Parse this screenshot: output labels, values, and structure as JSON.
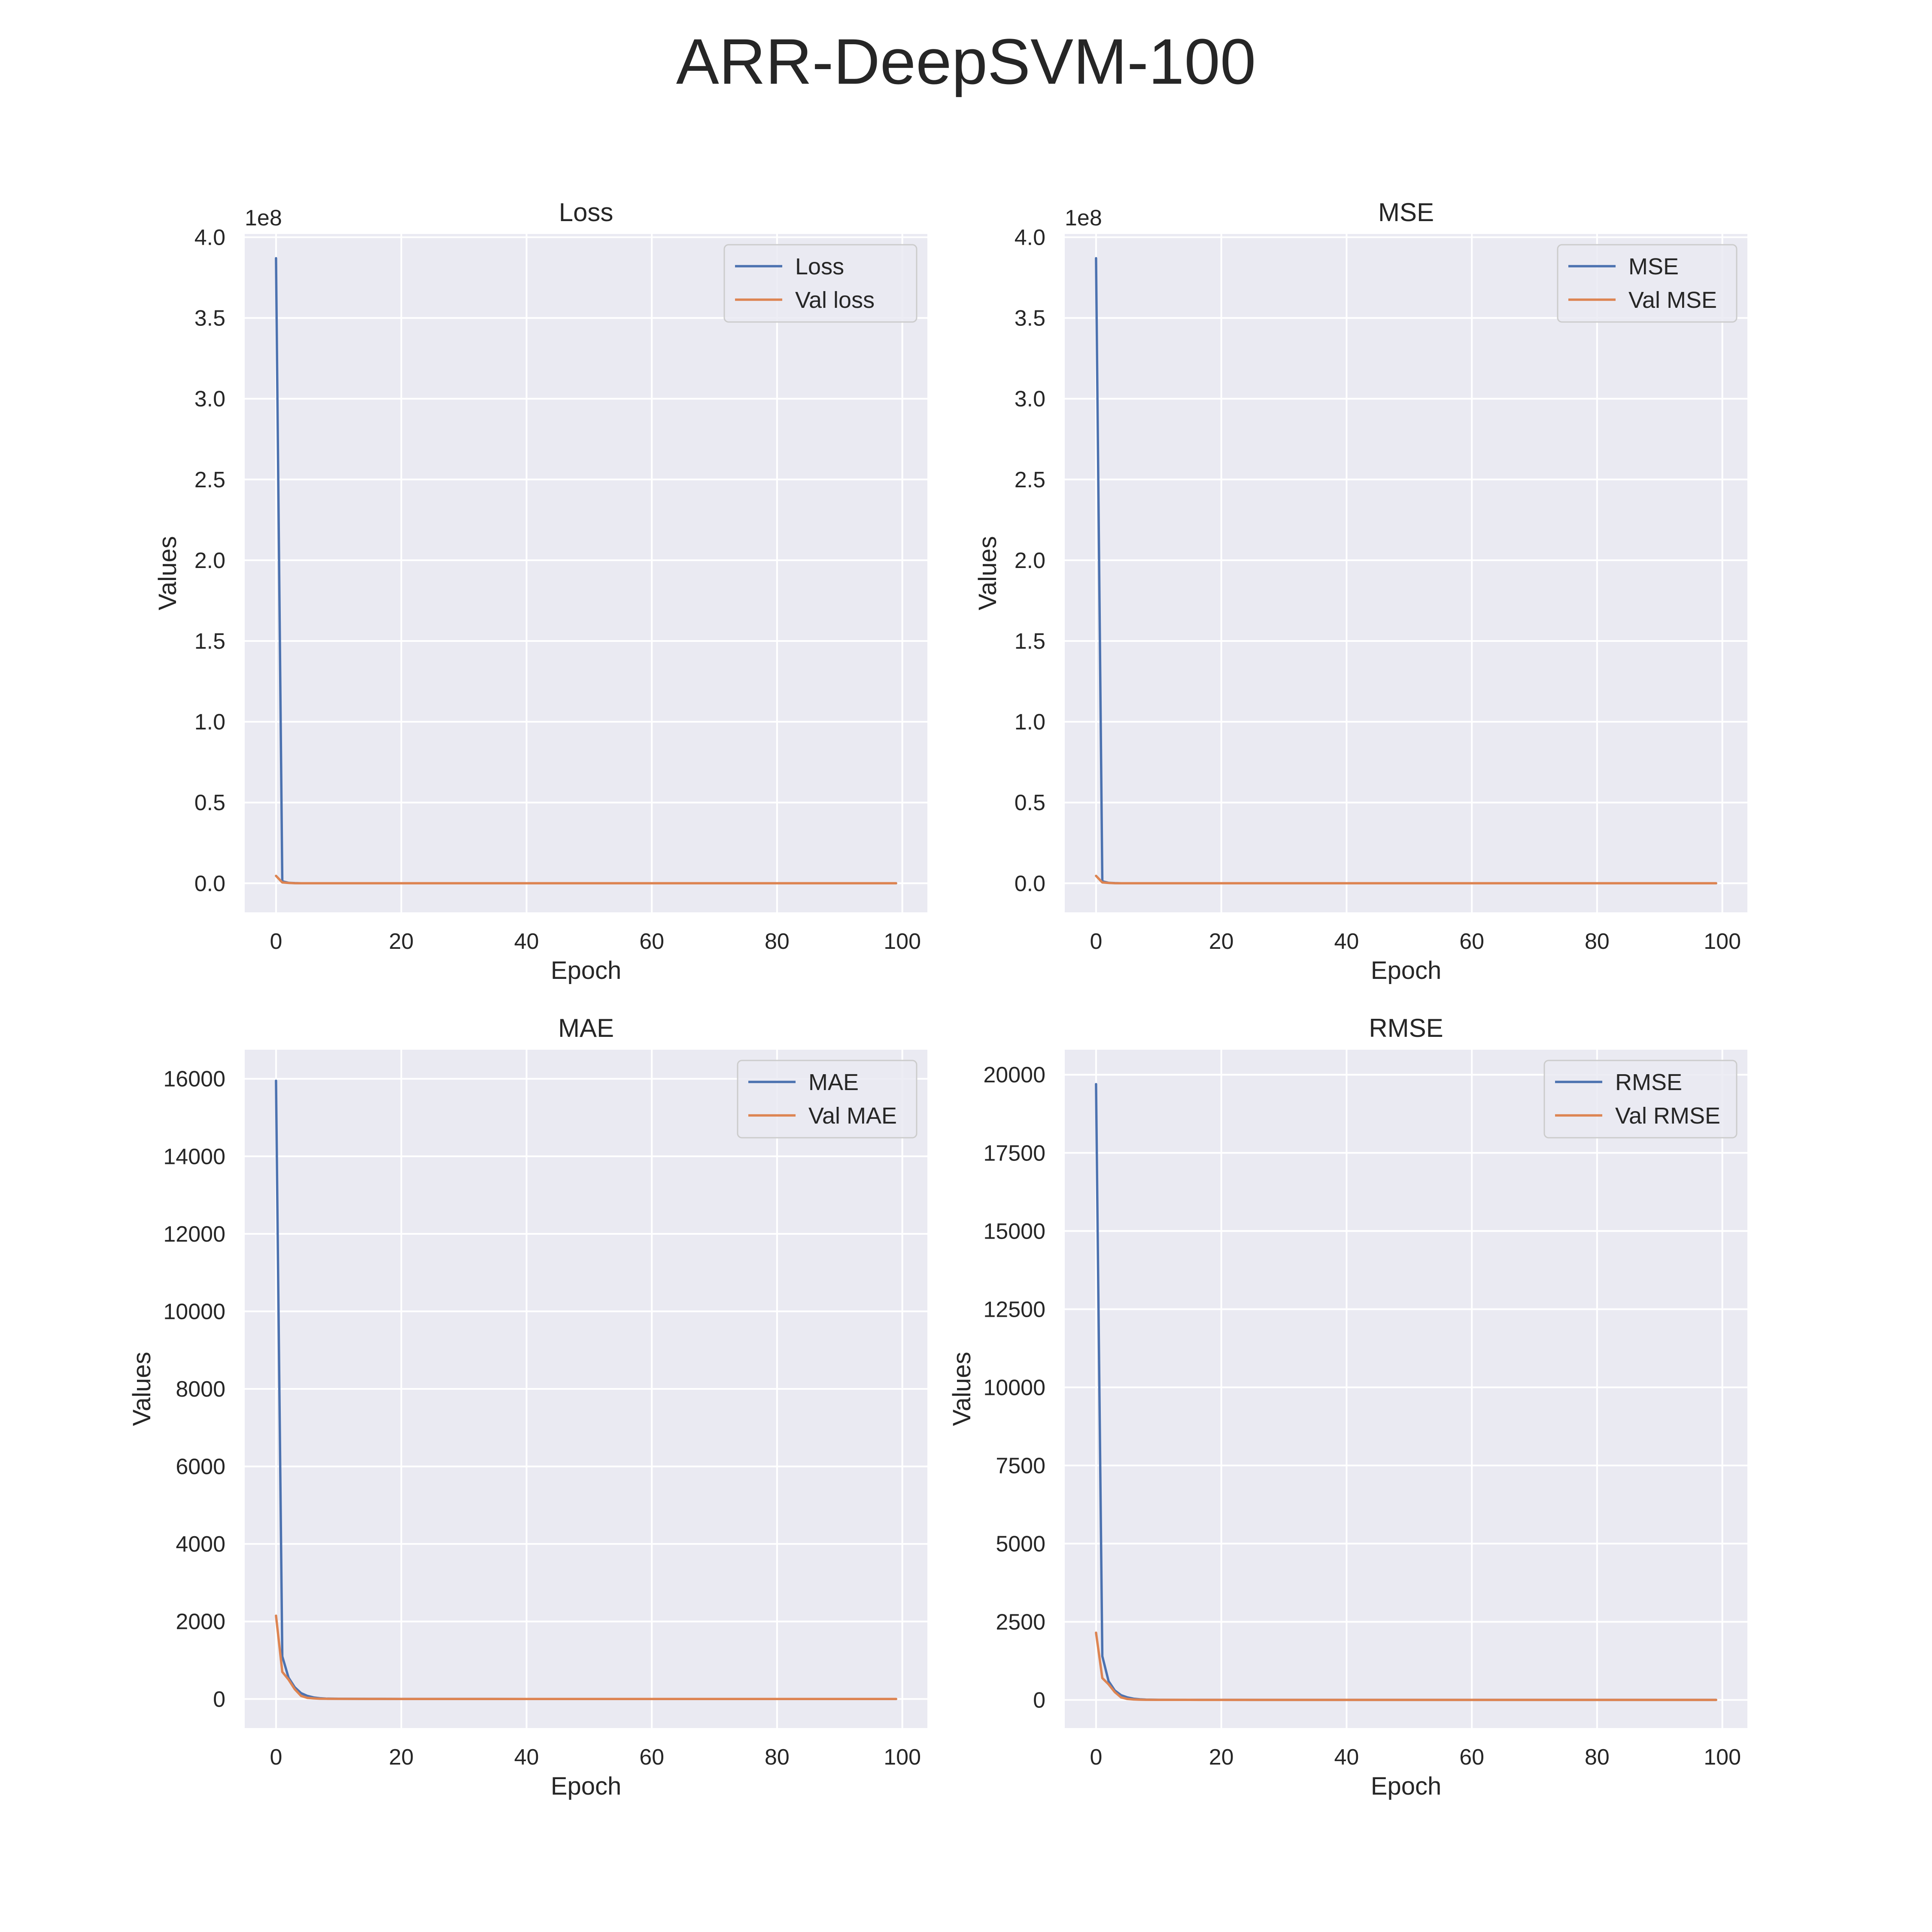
{
  "figure": {
    "title": "ARR-DeepSVM-100"
  },
  "colors": {
    "train": "#4c72b0",
    "val": "#dd8452",
    "plot_bg": "#eaeaf2",
    "grid": "#ffffff",
    "text": "#262626"
  },
  "chart_data": [
    {
      "type": "line",
      "title": "Loss",
      "xlabel": "Epoch",
      "ylabel": "Values",
      "offset_label": "1e8",
      "xlim": [
        -5,
        104
      ],
      "ylim": [
        -18000000,
        402000000
      ],
      "xticks": [
        0,
        20,
        40,
        60,
        80,
        100
      ],
      "xtick_labels": [
        "0",
        "20",
        "40",
        "60",
        "80",
        "100"
      ],
      "yticks": [
        0,
        50000000,
        100000000,
        150000000,
        200000000,
        250000000,
        300000000,
        350000000,
        400000000
      ],
      "ytick_labels": [
        "0.0",
        "0.5",
        "1.0",
        "1.5",
        "2.0",
        "2.5",
        "3.0",
        "3.5",
        "4.0"
      ],
      "legend_position": "top-right",
      "grid": true,
      "series": [
        {
          "name": "Loss",
          "color": "#4c72b0",
          "x": [
            0,
            1,
            2,
            3,
            4,
            5,
            6,
            8,
            10,
            20,
            40,
            60,
            80,
            99
          ],
          "y": [
            387000000,
            1200000,
            300000,
            100000,
            30000,
            10000,
            5000,
            2000,
            1000,
            500,
            300,
            200,
            150,
            100
          ]
        },
        {
          "name": "Val loss",
          "color": "#dd8452",
          "x": [
            0,
            1,
            2,
            3,
            4,
            5,
            6,
            8,
            10,
            20,
            40,
            60,
            80,
            99
          ],
          "y": [
            4600000,
            500000,
            200000,
            60000,
            20000,
            8000,
            4000,
            1500,
            800,
            400,
            250,
            180,
            140,
            100
          ]
        }
      ]
    },
    {
      "type": "line",
      "title": "MSE",
      "xlabel": "Epoch",
      "ylabel": "Values",
      "offset_label": "1e8",
      "xlim": [
        -5,
        104
      ],
      "ylim": [
        -18000000,
        402000000
      ],
      "xticks": [
        0,
        20,
        40,
        60,
        80,
        100
      ],
      "xtick_labels": [
        "0",
        "20",
        "40",
        "60",
        "80",
        "100"
      ],
      "yticks": [
        0,
        50000000,
        100000000,
        150000000,
        200000000,
        250000000,
        300000000,
        350000000,
        400000000
      ],
      "ytick_labels": [
        "0.0",
        "0.5",
        "1.0",
        "1.5",
        "2.0",
        "2.5",
        "3.0",
        "3.5",
        "4.0"
      ],
      "legend_position": "top-right",
      "grid": true,
      "series": [
        {
          "name": "MSE",
          "color": "#4c72b0",
          "x": [
            0,
            1,
            2,
            3,
            4,
            5,
            6,
            8,
            10,
            20,
            40,
            60,
            80,
            99
          ],
          "y": [
            387000000,
            1200000,
            300000,
            100000,
            30000,
            10000,
            5000,
            2000,
            1000,
            500,
            300,
            200,
            150,
            100
          ]
        },
        {
          "name": "Val MSE",
          "color": "#dd8452",
          "x": [
            0,
            1,
            2,
            3,
            4,
            5,
            6,
            8,
            10,
            20,
            40,
            60,
            80,
            99
          ],
          "y": [
            4600000,
            500000,
            200000,
            60000,
            20000,
            8000,
            4000,
            1500,
            800,
            400,
            250,
            180,
            140,
            100
          ]
        }
      ]
    },
    {
      "type": "line",
      "title": "MAE",
      "xlabel": "Epoch",
      "ylabel": "Values",
      "offset_label": "",
      "xlim": [
        -5,
        104
      ],
      "ylim": [
        -750,
        16750
      ],
      "xticks": [
        0,
        20,
        40,
        60,
        80,
        100
      ],
      "xtick_labels": [
        "0",
        "20",
        "40",
        "60",
        "80",
        "100"
      ],
      "yticks": [
        0,
        2000,
        4000,
        6000,
        8000,
        10000,
        12000,
        14000,
        16000
      ],
      "ytick_labels": [
        "0",
        "2000",
        "4000",
        "6000",
        "8000",
        "10000",
        "12000",
        "14000",
        "16000"
      ],
      "legend_position": "top-right",
      "grid": true,
      "series": [
        {
          "name": "MAE",
          "color": "#4c72b0",
          "x": [
            0,
            1,
            2,
            3,
            4,
            5,
            6,
            7,
            8,
            10,
            15,
            20,
            40,
            60,
            80,
            99
          ],
          "y": [
            15950,
            1100,
            550,
            300,
            150,
            80,
            40,
            20,
            10,
            5,
            3,
            2,
            1,
            1,
            1,
            1
          ]
        },
        {
          "name": "Val MAE",
          "color": "#dd8452",
          "x": [
            0,
            1,
            2,
            3,
            4,
            5,
            6,
            7,
            8,
            10,
            15,
            20,
            40,
            60,
            80,
            99
          ],
          "y": [
            2150,
            700,
            500,
            250,
            80,
            30,
            15,
            8,
            5,
            3,
            2,
            1,
            1,
            1,
            1,
            1
          ]
        }
      ]
    },
    {
      "type": "line",
      "title": "RMSE",
      "xlabel": "Epoch",
      "ylabel": "Values",
      "offset_label": "",
      "xlim": [
        -5,
        104
      ],
      "ylim": [
        -900,
        20800
      ],
      "xticks": [
        0,
        20,
        40,
        60,
        80,
        100
      ],
      "xtick_labels": [
        "0",
        "20",
        "40",
        "60",
        "80",
        "100"
      ],
      "yticks": [
        0,
        2500,
        5000,
        7500,
        10000,
        12500,
        15000,
        17500,
        20000
      ],
      "ytick_labels": [
        "0",
        "2500",
        "5000",
        "7500",
        "10000",
        "12500",
        "15000",
        "17500",
        "20000"
      ],
      "legend_position": "top-right",
      "grid": true,
      "series": [
        {
          "name": "RMSE",
          "color": "#4c72b0",
          "x": [
            0,
            1,
            2,
            3,
            4,
            5,
            6,
            7,
            8,
            10,
            15,
            20,
            40,
            60,
            80,
            99
          ],
          "y": [
            19700,
            1400,
            600,
            300,
            150,
            80,
            40,
            20,
            10,
            5,
            3,
            2,
            1,
            1,
            1,
            1
          ]
        },
        {
          "name": "Val RMSE",
          "color": "#dd8452",
          "x": [
            0,
            1,
            2,
            3,
            4,
            5,
            6,
            7,
            8,
            10,
            15,
            20,
            40,
            60,
            80,
            99
          ],
          "y": [
            2150,
            700,
            500,
            250,
            80,
            30,
            15,
            8,
            5,
            3,
            2,
            1,
            1,
            1,
            1,
            1
          ]
        }
      ]
    }
  ]
}
